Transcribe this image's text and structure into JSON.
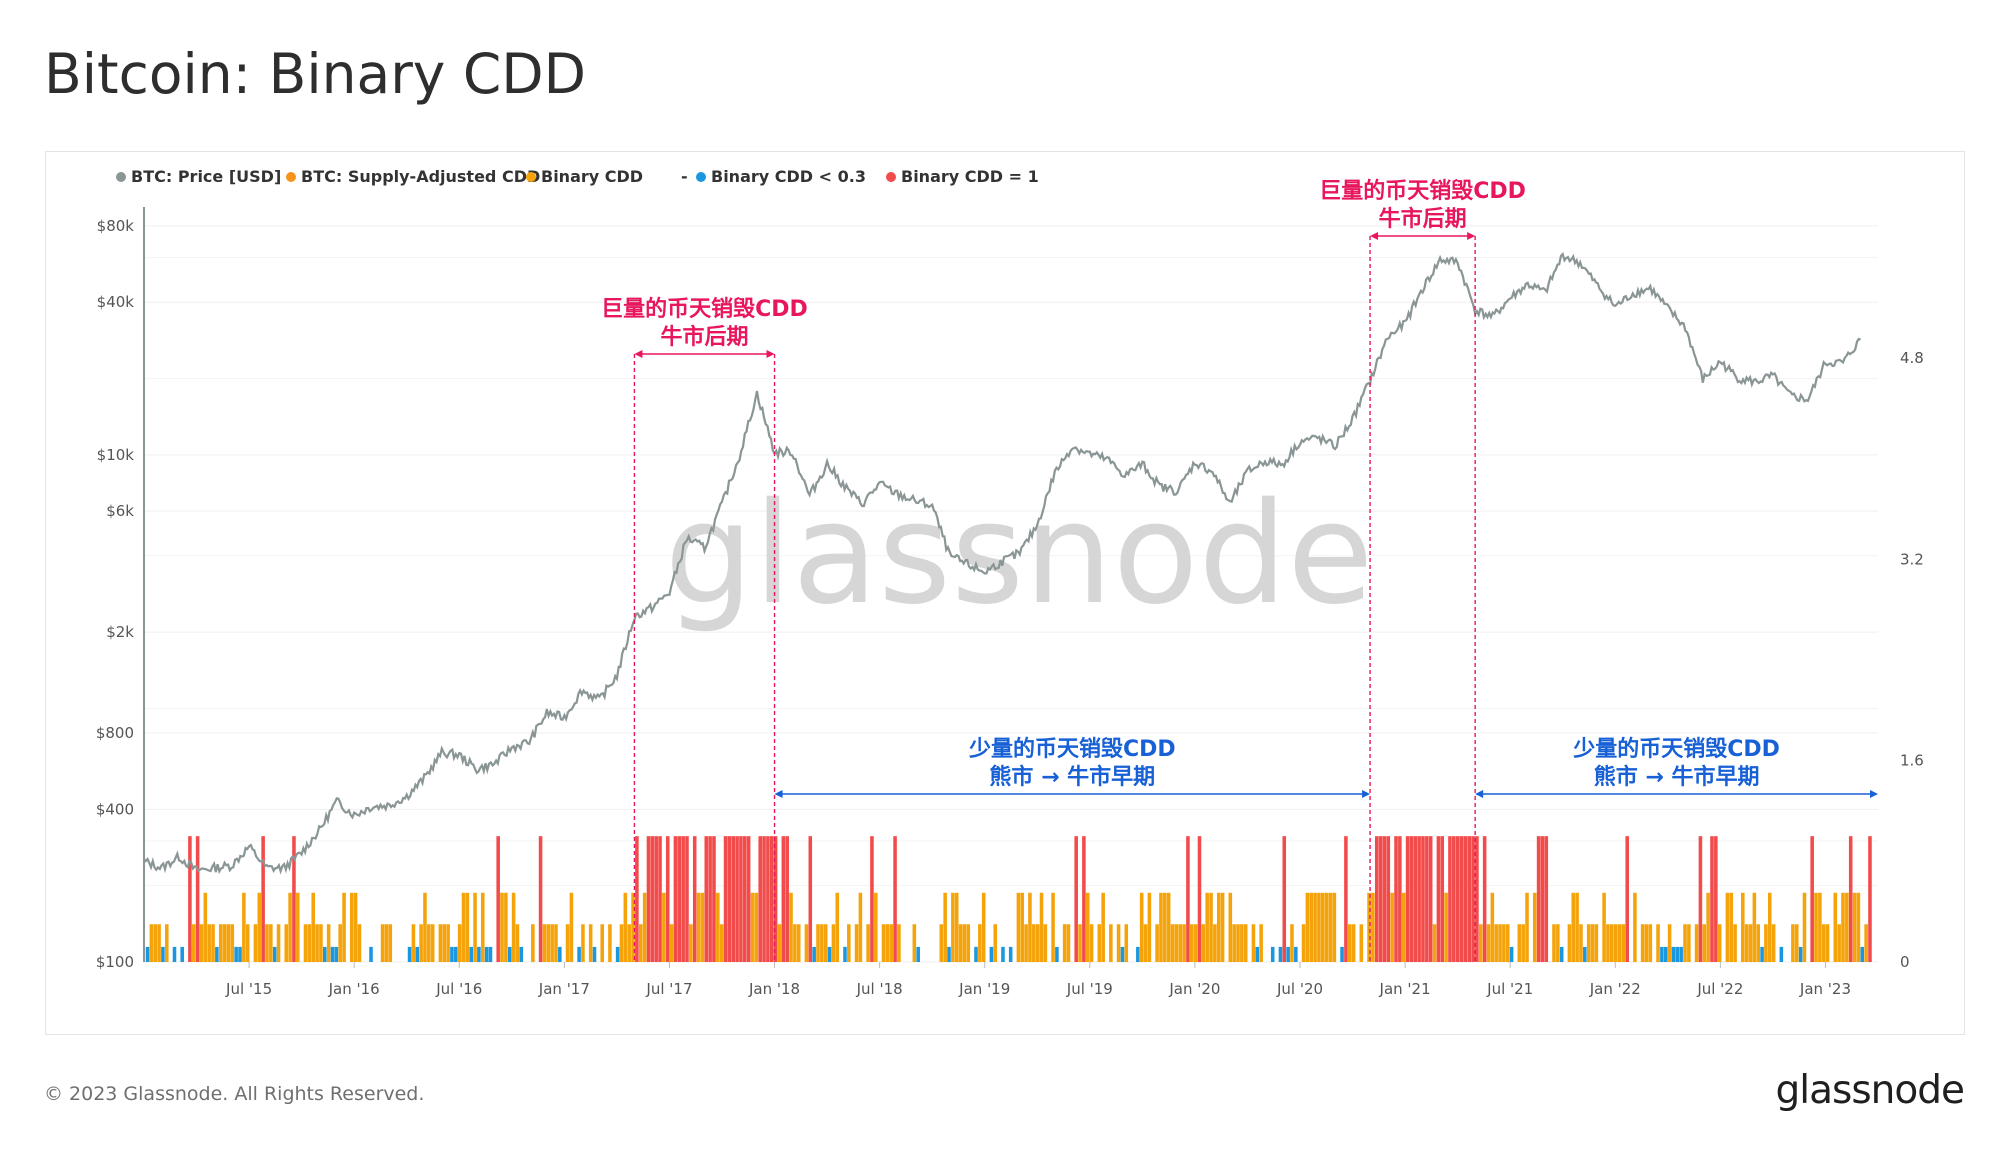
{
  "title": "Bitcoin: Binary CDD",
  "footer": {
    "copyright": "© 2023 Glassnode. All Rights Reserved.",
    "logo": "glassnode"
  },
  "watermark": "glassnode",
  "colors": {
    "price": "#8a9596",
    "supply_adjusted": "#f7931a",
    "binary": "#f5a30a",
    "low": "#1a97df",
    "one": "#f24b4b",
    "pink": "#e8175d",
    "blue": "#1760d6"
  },
  "chart_data": {
    "type": "line+bar",
    "x_tick_labels": [
      "Jul '15",
      "Jan '16",
      "Jul '16",
      "Jan '17",
      "Jul '17",
      "Jan '18",
      "Jul '18",
      "Jan '19",
      "Jul '19",
      "Jan '20",
      "Jul '20",
      "Jan '21",
      "Jul '21",
      "Jan '22",
      "Jul '22",
      "Jan '23"
    ],
    "x_range": [
      "2015-01",
      "2023-04"
    ],
    "y_left": {
      "scale": "log",
      "ticks": [
        "$80k",
        "$40k",
        "$10k",
        "$6k",
        "$2k",
        "$800",
        "$400",
        "$100"
      ]
    },
    "y_right": {
      "ticks": [
        "4.8",
        "3.2",
        "1.6",
        "0"
      ],
      "range": [
        0,
        6
      ]
    },
    "legend": {
      "items": [
        {
          "label": "BTC: Price [USD]",
          "color": "#8a9596",
          "active": true
        },
        {
          "label": "BTC: Supply-Adjusted CDD",
          "color": "#f7931a",
          "active": false
        },
        {
          "label": "Binary CDD",
          "color": "#f5a30a",
          "active": true
        },
        {
          "label": "-",
          "color": "",
          "active": true
        },
        {
          "label": "Binary CDD < 0.3",
          "color": "#1a97df",
          "active": true
        },
        {
          "label": "Binary CDD = 1",
          "color": "#f24b4b",
          "active": true
        }
      ]
    },
    "price_series": {
      "name": "BTC: Price [USD]",
      "points": [
        [
          "2015-01",
          250
        ],
        [
          "2015-02",
          235
        ],
        [
          "2015-03",
          260
        ],
        [
          "2015-04",
          230
        ],
        [
          "2015-05",
          235
        ],
        [
          "2015-06",
          240
        ],
        [
          "2015-07",
          285
        ],
        [
          "2015-08",
          235
        ],
        [
          "2015-09",
          235
        ],
        [
          "2015-10",
          270
        ],
        [
          "2015-11",
          330
        ],
        [
          "2015-12",
          430
        ],
        [
          "2016-01",
          380
        ],
        [
          "2016-02",
          410
        ],
        [
          "2016-03",
          415
        ],
        [
          "2016-04",
          450
        ],
        [
          "2016-05",
          530
        ],
        [
          "2016-06",
          670
        ],
        [
          "2016-07",
          655
        ],
        [
          "2016-08",
          575
        ],
        [
          "2016-09",
          605
        ],
        [
          "2016-10",
          700
        ],
        [
          "2016-11",
          740
        ],
        [
          "2016-12",
          960
        ],
        [
          "2017-01",
          920
        ],
        [
          "2017-02",
          1180
        ],
        [
          "2017-03",
          1080
        ],
        [
          "2017-04",
          1350
        ],
        [
          "2017-05",
          2300
        ],
        [
          "2017-06",
          2500
        ],
        [
          "2017-07",
          2870
        ],
        [
          "2017-08",
          4700
        ],
        [
          "2017-09",
          4300
        ],
        [
          "2017-10",
          6400
        ],
        [
          "2017-11",
          9900
        ],
        [
          "2017-12",
          17500
        ],
        [
          "2018-01",
          10200
        ],
        [
          "2018-02",
          10300
        ],
        [
          "2018-03",
          6900
        ],
        [
          "2018-04",
          9200
        ],
        [
          "2018-05",
          7500
        ],
        [
          "2018-06",
          6400
        ],
        [
          "2018-07",
          7700
        ],
        [
          "2018-08",
          7000
        ],
        [
          "2018-09",
          6600
        ],
        [
          "2018-10",
          6300
        ],
        [
          "2018-11",
          4000
        ],
        [
          "2018-12",
          3700
        ],
        [
          "2019-01",
          3450
        ],
        [
          "2019-02",
          3800
        ],
        [
          "2019-03",
          4100
        ],
        [
          "2019-04",
          5300
        ],
        [
          "2019-05",
          8500
        ],
        [
          "2019-06",
          10800
        ],
        [
          "2019-07",
          10100
        ],
        [
          "2019-08",
          9600
        ],
        [
          "2019-09",
          8300
        ],
        [
          "2019-10",
          9200
        ],
        [
          "2019-11",
          7500
        ],
        [
          "2019-12",
          7200
        ],
        [
          "2020-01",
          9350
        ],
        [
          "2020-02",
          8600
        ],
        [
          "2020-03",
          6400
        ],
        [
          "2020-04",
          8600
        ],
        [
          "2020-05",
          9450
        ],
        [
          "2020-06",
          9150
        ],
        [
          "2020-07",
          11300
        ],
        [
          "2020-08",
          11700
        ],
        [
          "2020-09",
          10800
        ],
        [
          "2020-10",
          13800
        ],
        [
          "2020-11",
          19700
        ],
        [
          "2020-12",
          29000
        ],
        [
          "2021-01",
          33100
        ],
        [
          "2021-02",
          45200
        ],
        [
          "2021-03",
          58800
        ],
        [
          "2021-04",
          57700
        ],
        [
          "2021-05",
          37300
        ],
        [
          "2021-06",
          35000
        ],
        [
          "2021-07",
          41500
        ],
        [
          "2021-08",
          47100
        ],
        [
          "2021-09",
          43800
        ],
        [
          "2021-10",
          61300
        ],
        [
          "2021-11",
          57000
        ],
        [
          "2021-12",
          46300
        ],
        [
          "2022-01",
          38500
        ],
        [
          "2022-02",
          43200
        ],
        [
          "2022-03",
          45500
        ],
        [
          "2022-04",
          37700
        ],
        [
          "2022-05",
          31800
        ],
        [
          "2022-06",
          19800
        ],
        [
          "2022-07",
          23300
        ],
        [
          "2022-08",
          20100
        ],
        [
          "2022-09",
          19400
        ],
        [
          "2022-10",
          20500
        ],
        [
          "2022-11",
          17100
        ],
        [
          "2022-12",
          16500
        ],
        [
          "2023-01",
          23100
        ],
        [
          "2023-02",
          23100
        ],
        [
          "2023-03",
          28500
        ]
      ]
    },
    "binary_cdd_bars": {
      "values": [
        0,
        0.3,
        0.5,
        1
      ],
      "note": "bars height = Binary CDD value; red = 1, orange = 0.3–1, blue < 0.3"
    },
    "annotations": [
      {
        "text_line1": "巨量的币天销毁CDD",
        "text_line2": "牛市后期",
        "from": "2017-05",
        "to": "2018-01",
        "color": "#e8175d"
      },
      {
        "text_line1": "巨量的币天销毁CDD",
        "text_line2": "牛市后期",
        "from": "2020-11",
        "to": "2021-05",
        "color": "#e8175d"
      },
      {
        "text_line1": "少量的币天销毁CDD",
        "text_line2": "熊市 → 牛市早期",
        "from": "2018-01",
        "to": "2020-11",
        "color": "#1760d6"
      },
      {
        "text_line1": "少量的币天销毁CDD",
        "text_line2": "熊市 → 牛市早期",
        "from": "2021-05",
        "to": "2023-04",
        "color": "#1760d6"
      }
    ]
  }
}
